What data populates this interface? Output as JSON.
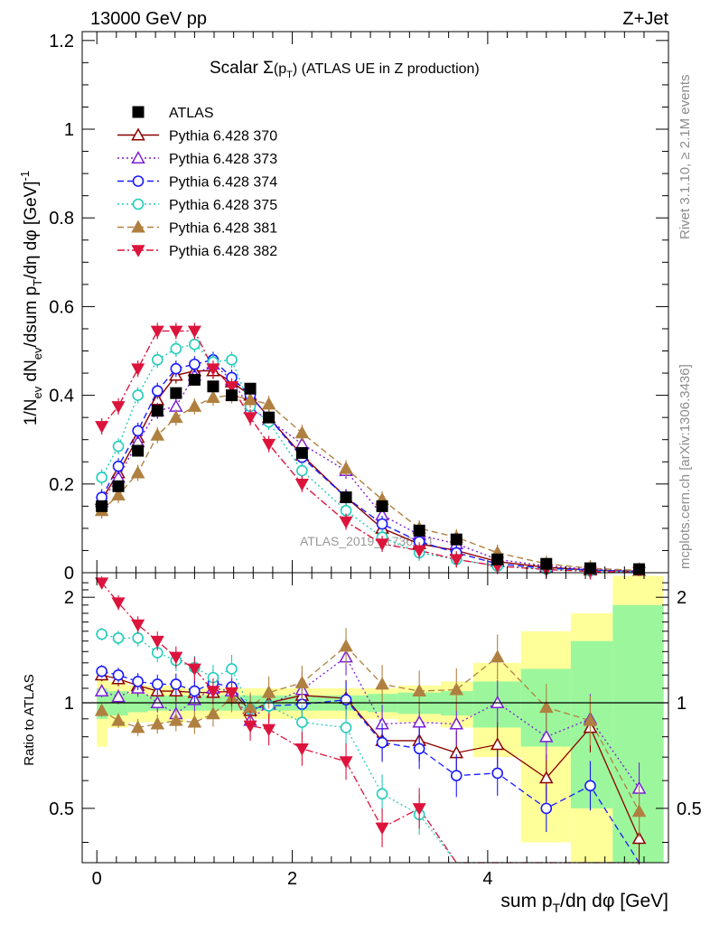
{
  "header": {
    "left": "13000 GeV pp",
    "right": "Z+Jet"
  },
  "side_labels": {
    "rivet": "Rivet 3.1.10, ≥ 2.1M events",
    "source": "mcplots.cern.ch [arXiv:1306.3436]"
  },
  "chart_data": [
    {
      "type": "scatter",
      "panel": "main",
      "title": "Scalar Σ(pT) (ATLAS UE in Z production)",
      "ylabel": "1/Nev dNev/dsum pT/dη dφ [GeV]⁻¹",
      "xlim": [
        -0.15,
        5.85
      ],
      "ylim": [
        0,
        1.22
      ],
      "yticks_labeled": [
        0,
        0.2,
        0.4,
        0.6,
        0.8,
        1,
        1.2
      ],
      "watermark": "ATLAS_2019_I1736531",
      "legend_position": "top-left",
      "x": [
        0.05,
        0.22,
        0.42,
        0.62,
        0.81,
        1.0,
        1.19,
        1.38,
        1.57,
        1.76,
        2.1,
        2.55,
        2.92,
        3.3,
        3.68,
        4.1,
        4.6,
        5.05,
        5.55
      ],
      "series": [
        {
          "name": "ATLAS",
          "style": "data",
          "color": "#000000",
          "marker": "square",
          "values": [
            0.15,
            0.195,
            0.275,
            0.365,
            0.405,
            0.435,
            0.42,
            0.4,
            0.415,
            0.35,
            0.27,
            0.17,
            0.15,
            0.095,
            0.075,
            0.03,
            0.02,
            0.01,
            0.008
          ]
        },
        {
          "name": "Pythia 6.428 370",
          "style": "solid",
          "color": "#8b0000",
          "marker": "tri-up-open",
          "values": [
            0.165,
            0.225,
            0.305,
            0.39,
            0.445,
            0.455,
            0.455,
            0.43,
            0.4,
            0.35,
            0.265,
            0.17,
            0.1,
            0.065,
            0.05,
            0.025,
            0.012,
            0.006,
            0.003
          ]
        },
        {
          "name": "Pythia 6.428 373",
          "style": "dotted",
          "color": "#7b1fd6",
          "marker": "tri-up-open",
          "values": [
            0.16,
            0.215,
            0.295,
            0.365,
            0.375,
            0.445,
            0.47,
            0.435,
            0.37,
            0.345,
            0.29,
            0.23,
            0.13,
            0.085,
            0.065,
            0.03,
            0.015,
            0.008,
            0.004
          ]
        },
        {
          "name": "Pythia 6.428 374",
          "style": "dashed",
          "color": "#1a1aff",
          "marker": "circle-open",
          "values": [
            0.17,
            0.24,
            0.32,
            0.41,
            0.46,
            0.47,
            0.48,
            0.44,
            0.4,
            0.35,
            0.26,
            0.17,
            0.11,
            0.07,
            0.045,
            0.02,
            0.01,
            0.006,
            0.002
          ]
        },
        {
          "name": "Pythia 6.428 375",
          "style": "dotted",
          "color": "#22ccbb",
          "marker": "circle-open",
          "values": [
            0.215,
            0.285,
            0.4,
            0.48,
            0.505,
            0.515,
            0.475,
            0.48,
            0.375,
            0.34,
            0.23,
            0.14,
            0.08,
            0.045,
            0.03,
            0.015,
            0.008,
            0.004,
            0.002
          ]
        },
        {
          "name": "Pythia 6.428 381",
          "style": "dashed",
          "color": "#b08040",
          "marker": "tri-up-filled",
          "values": [
            0.14,
            0.175,
            0.225,
            0.31,
            0.35,
            0.375,
            0.395,
            0.4,
            0.39,
            0.38,
            0.315,
            0.235,
            0.165,
            0.1,
            0.08,
            0.045,
            0.02,
            0.01,
            0.005
          ]
        },
        {
          "name": "Pythia 6.428 382",
          "style": "dashdot",
          "color": "#dc143c",
          "marker": "tri-down-filled",
          "values": [
            0.33,
            0.375,
            0.46,
            0.545,
            0.545,
            0.545,
            0.46,
            0.42,
            0.35,
            0.29,
            0.2,
            0.115,
            0.065,
            0.05,
            0.03,
            0.015,
            0.007,
            0.003,
            0.001
          ]
        }
      ]
    },
    {
      "type": "scatter",
      "panel": "ratio",
      "ylabel": "Ratio to ATLAS",
      "xlabel": "sum pT/dη dφ [GeV]",
      "xlim": [
        -0.15,
        5.85
      ],
      "ylim": [
        0.35,
        2.35
      ],
      "yticks_labeled": [
        0.5,
        1,
        2
      ],
      "xticks_labeled": [
        0,
        2,
        4
      ],
      "bands": {
        "edges": [
          0.0,
          0.11,
          0.32,
          0.52,
          0.72,
          0.91,
          1.1,
          1.29,
          1.48,
          1.67,
          1.86,
          2.32,
          2.77,
          3.08,
          3.52,
          3.85,
          4.34,
          4.85,
          5.28,
          5.8
        ],
        "inner": {
          "color": "#9cf79c",
          "halfwidth": [
            0.1,
            0.08,
            0.06,
            0.05,
            0.05,
            0.05,
            0.05,
            0.05,
            0.05,
            0.05,
            0.05,
            0.05,
            0.06,
            0.07,
            0.08,
            0.15,
            0.25,
            0.5,
            0.9
          ]
        },
        "outer": {
          "color": "#ffff99",
          "halfwidth": [
            0.25,
            0.15,
            0.12,
            0.12,
            0.12,
            0.1,
            0.1,
            0.1,
            0.1,
            0.1,
            0.1,
            0.1,
            0.1,
            0.12,
            0.15,
            0.3,
            0.6,
            0.8,
            1.3
          ]
        }
      },
      "x": [
        0.05,
        0.22,
        0.42,
        0.62,
        0.81,
        1.0,
        1.19,
        1.38,
        1.57,
        1.76,
        2.1,
        2.55,
        2.92,
        3.3,
        3.68,
        4.1,
        4.6,
        5.05,
        5.55
      ],
      "series": [
        {
          "name": "Pythia 6.428 370",
          "color": "#8b0000",
          "style": "solid",
          "marker": "tri-up-open",
          "values": [
            1.2,
            1.17,
            1.12,
            1.08,
            1.08,
            1.07,
            1.07,
            1.08,
            0.95,
            1.0,
            1.05,
            1.03,
            0.78,
            0.78,
            0.72,
            0.76,
            0.61,
            0.85,
            0.41
          ]
        },
        {
          "name": "Pythia 6.428 373",
          "color": "#7b1fd6",
          "style": "dotted",
          "marker": "tri-up-open",
          "values": [
            1.08,
            1.04,
            1.1,
            1.0,
            0.93,
            1.02,
            1.1,
            1.08,
            0.89,
            0.99,
            1.09,
            1.35,
            0.87,
            0.88,
            0.87,
            1.0,
            0.8,
            0.9,
            0.57
          ]
        },
        {
          "name": "Pythia 6.428 374",
          "color": "#1a1aff",
          "style": "dashed",
          "marker": "circle-open",
          "values": [
            1.23,
            1.2,
            1.15,
            1.13,
            1.13,
            1.08,
            1.14,
            1.11,
            0.96,
            0.98,
            0.99,
            1.02,
            0.77,
            0.74,
            0.62,
            0.63,
            0.5,
            0.58,
            0.3
          ]
        },
        {
          "name": "Pythia 6.428 375",
          "color": "#22ccbb",
          "style": "dotted",
          "marker": "circle-open",
          "values": [
            1.57,
            1.53,
            1.53,
            1.39,
            1.32,
            1.26,
            1.18,
            1.25,
            0.96,
            0.98,
            0.88,
            0.85,
            0.55,
            0.48,
            0.3,
            0.3,
            0.3,
            0.3,
            0.3
          ]
        },
        {
          "name": "Pythia 6.428 381",
          "color": "#b08040",
          "style": "dashed",
          "marker": "tri-up-filled",
          "values": [
            0.95,
            0.89,
            0.85,
            0.87,
            0.89,
            0.88,
            0.93,
            1.03,
            0.97,
            1.07,
            1.14,
            1.45,
            1.13,
            1.08,
            1.09,
            1.35,
            0.97,
            0.89,
            0.49
          ]
        },
        {
          "name": "Pythia 6.428 382",
          "color": "#dc143c",
          "style": "dashdot",
          "marker": "tri-down-filled",
          "values": [
            2.2,
            1.93,
            1.67,
            1.5,
            1.35,
            1.25,
            1.08,
            1.07,
            0.86,
            0.84,
            0.74,
            0.68,
            0.44,
            0.5,
            0.3,
            0.3,
            0.3,
            0.3,
            0.3
          ]
        }
      ]
    }
  ]
}
